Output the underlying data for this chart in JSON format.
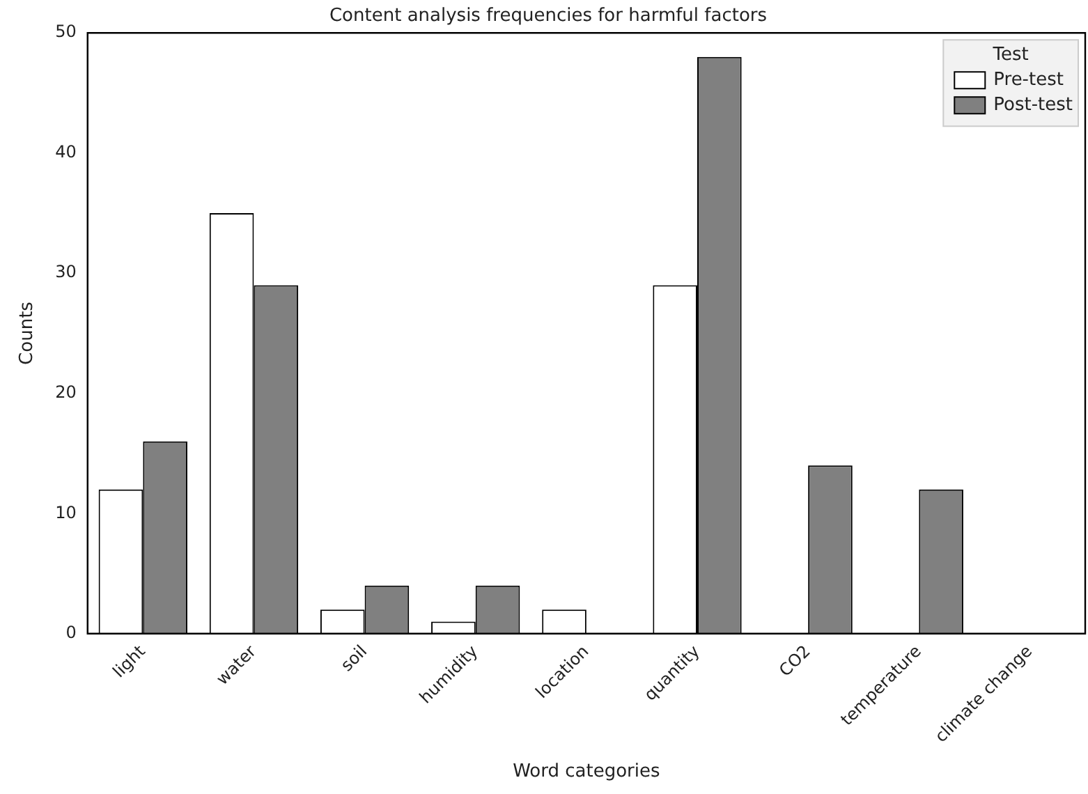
{
  "chart_data": {
    "type": "bar",
    "title": "Content analysis frequencies for harmful factors",
    "xlabel": "Word categories",
    "ylabel": "Counts",
    "legend_title": "Test",
    "legend": "top right",
    "grid": false,
    "categories": [
      "light",
      "water",
      "soil",
      "humidity",
      "location",
      "quantity",
      "CO2",
      "temperature",
      "climate change"
    ],
    "series": [
      {
        "name": "Pre-test",
        "color": "#ffffff",
        "values": [
          12,
          35,
          2,
          1,
          2,
          29,
          0,
          0,
          0
        ]
      },
      {
        "name": "Post-test",
        "color": "#808080",
        "values": [
          16,
          29,
          4,
          4,
          0,
          48,
          14,
          12,
          0
        ]
      }
    ],
    "ylim": [
      0,
      50
    ],
    "yticks": [
      0,
      10,
      20,
      30,
      40,
      50
    ]
  }
}
